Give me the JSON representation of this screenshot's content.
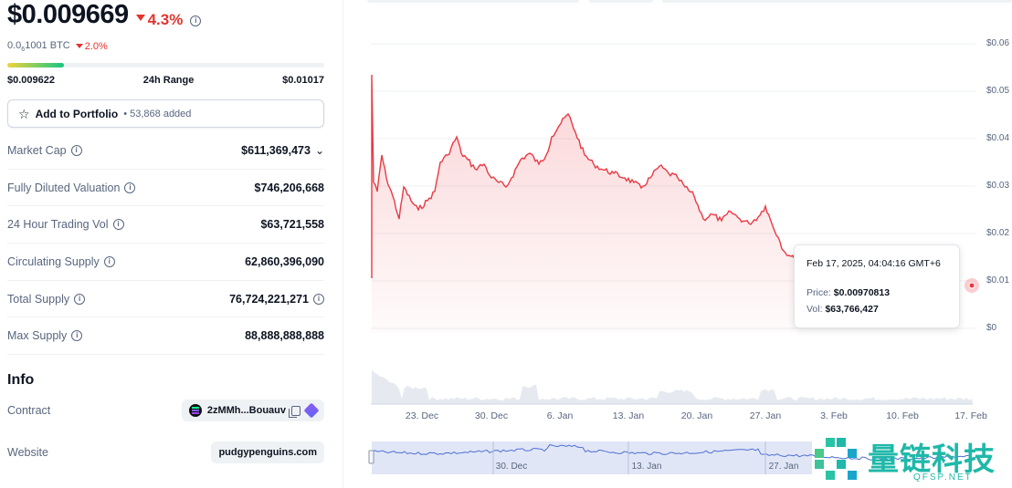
{
  "price": {
    "value": "$0.009669",
    "change": "4.3%",
    "btc_prefix": "0.0",
    "btc_sub": "6",
    "btc_rest": "1001 BTC",
    "btc_change": "2.0%"
  },
  "range": {
    "low": "$0.009622",
    "label": "24h Range",
    "high": "$0.01017",
    "fill_fraction": 0.18
  },
  "portfolio": {
    "label": "Add to Portfolio",
    "added": "• 53,868 added"
  },
  "stats": [
    {
      "label": "Market Cap",
      "value": "$611,369,473",
      "chevron": true
    },
    {
      "label": "Fully Diluted Valuation",
      "value": "$746,206,668"
    },
    {
      "label": "24 Hour Trading Vol",
      "value": "$63,721,558"
    },
    {
      "label": "Circulating Supply",
      "value": "62,860,396,090"
    },
    {
      "label": "Total Supply",
      "value": "76,724,221,271",
      "info": true
    },
    {
      "label": "Max Supply",
      "value": "88,888,888,888"
    }
  ],
  "info": {
    "title": "Info",
    "contract_label": "Contract",
    "contract_value": "2zMMh...Bouauv",
    "website_label": "Website",
    "website_value": "pudgypenguins.com"
  },
  "chart": {
    "y_ticks": [
      "$0.06",
      "$0.05",
      "$0.04",
      "$0.03",
      "$0.02",
      "$0.01",
      "$0"
    ],
    "x_ticks": [
      "23. Dec",
      "30. Dec",
      "6. Jan",
      "13. Jan",
      "20. Jan",
      "27. Jan",
      "3. Feb",
      "10. Feb",
      "17. Feb"
    ],
    "navigator_ticks": [
      "30. Dec",
      "13. Jan",
      "27. Jan"
    ],
    "line_color": "#ea3943",
    "tooltip": {
      "time": "Feb 17, 2025, 04:04:16 GMT+6",
      "price_label": "Price:",
      "price": "$0.00970813",
      "vol_label": "Vol:",
      "vol": "$63,766,427"
    }
  },
  "watermark": {
    "cn": "量链科技",
    "en": "QFSP.NET"
  }
}
